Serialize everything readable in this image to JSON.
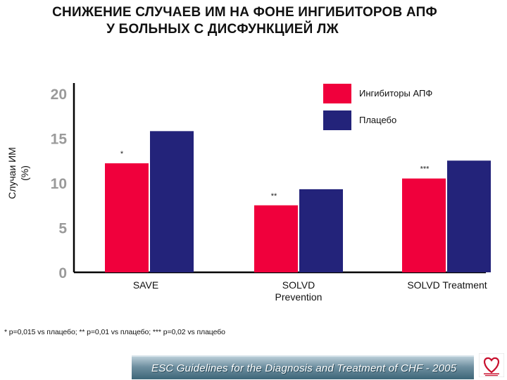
{
  "title": {
    "line1": "СНИЖЕНИЕ СЛУЧАЕВ ИМ НА ФОНЕ ИНГИБИТОРОВ АПФ",
    "line2": "У БОЛЬНЫХ С ДИСФУНКЦИЕЙ ЛЖ"
  },
  "chart_data": {
    "type": "bar",
    "ylabel_line1": "Случаи ИМ",
    "ylabel_line2": "(%)",
    "ylim": [
      0,
      20
    ],
    "yticks": [
      "0",
      "5",
      "10",
      "15",
      "20"
    ],
    "categories": [
      {
        "lines": [
          "SAVE"
        ]
      },
      {
        "lines": [
          "SOLVD",
          "Prevention"
        ]
      },
      {
        "lines": [
          "SOLVD Treatment"
        ]
      }
    ],
    "series": [
      {
        "name": "Ингибиторы АПФ",
        "color": "#f0003c",
        "values": [
          12.2,
          7.5,
          10.5
        ],
        "annotations": [
          "*",
          "**",
          "***"
        ]
      },
      {
        "name": "Плацебо",
        "color": "#23237a",
        "values": [
          15.8,
          9.3,
          12.5
        ]
      }
    ],
    "legend_position": "top-right",
    "grid": false
  },
  "footnote": "* p=0,015 vs плацебо;    ** p=0,01 vs плацебо;    *** p=0,02 vs плацебо",
  "banner": {
    "text": "ESC Guidelines for the Diagnosis and Treatment of CHF - 2005"
  },
  "logo": {
    "icon": "heart-logo-icon",
    "color": "#c8102e"
  }
}
